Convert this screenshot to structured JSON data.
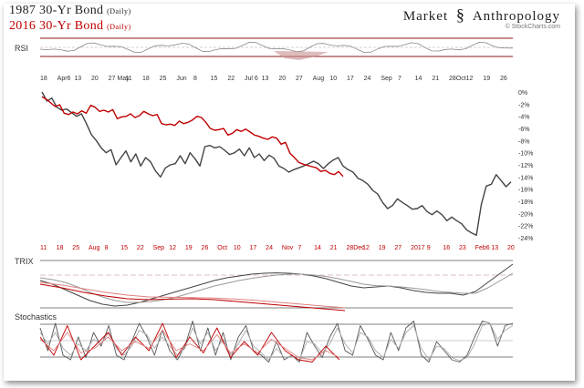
{
  "header": {
    "title_1987": "1987",
    "title_1987_name": "30-Yr Bond",
    "title_1987_period": "(Daily)",
    "title_2016": "2016",
    "title_2016_name": "30-Yr Bond",
    "title_2016_period": "(Daily)",
    "brand_left": "Market",
    "brand_right": "Anthropology",
    "copyright": "© StockCharts.com"
  },
  "colors": {
    "series_1987": "#444444",
    "series_2016": "#c00000",
    "accent": "#8b1a1a"
  },
  "chart_data": [
    {
      "type": "line",
      "panel": "RSI",
      "title": "RSI",
      "top_axis_labels": [
        "18",
        "Apr6",
        "13",
        "20",
        "27 May",
        "11",
        "18",
        "25",
        "Jun",
        "8",
        "15",
        "22",
        "Jul 6",
        "13",
        "20",
        "27",
        "Aug",
        "10",
        "17",
        "24",
        "Sep",
        "7",
        "14",
        "21",
        "28Oct",
        "12",
        "19",
        "26"
      ]
    },
    {
      "type": "line",
      "panel": "price",
      "y_tick_labels": [
        "0%",
        "-2%",
        "-4%",
        "-6%",
        "-8%",
        "-10%",
        "-12%",
        "-14%",
        "-16%",
        "-18%",
        "-20%",
        "-22%",
        "-24%"
      ],
      "ylim": [
        -24,
        0
      ],
      "bottom_axis_labels": [
        "11",
        "18",
        "25",
        "Aug",
        "8",
        "15",
        "22",
        "Sep",
        "12",
        "19",
        "26",
        "Oct",
        "10",
        "17",
        "24",
        "Nov",
        "7",
        "14",
        "21",
        "28Dec",
        "12",
        "19",
        "27",
        "2017",
        "9",
        "16",
        "23",
        "Feb6",
        "13",
        "20"
      ],
      "series": [
        {
          "name": "1987 30-Yr Bond",
          "color": "#444444",
          "values": [
            0,
            -1.5,
            -1,
            -2.5,
            -3,
            -2.8,
            -3.4,
            -4,
            -3.6,
            -5.2,
            -7,
            -8,
            -9.2,
            -10,
            -9.5,
            -12,
            -10.8,
            -9.7,
            -11.5,
            -10.2,
            -12.2,
            -10.8,
            -11.5,
            -13,
            -14,
            -12.5,
            -12,
            -11.8,
            -10.5,
            -11.8,
            -10,
            -11,
            -12.2,
            -9,
            -8.8,
            -9.2,
            -9,
            -9.6,
            -10.3,
            -10,
            -9.4,
            -10.5,
            -9.2,
            -10.8,
            -10.2,
            -11.3,
            -10.4,
            -10.9,
            -12.2,
            -12.6,
            -13.2,
            -12.8,
            -12.5,
            -12.2,
            -11.8,
            -11.4,
            -11.8,
            -12.6,
            -11.8,
            -11.2,
            -10.8,
            -12.2,
            -12.8,
            -13.2,
            -14.2,
            -14.6,
            -15.2,
            -16.2,
            -16.8,
            -18.2,
            -19.2,
            -18.7,
            -17.6,
            -18.2,
            -18.7,
            -19.3,
            -19.2,
            -18.7,
            -19.7,
            -20.2,
            -19.6,
            -20.2,
            -21.2,
            -20.6,
            -21.2,
            -21.7,
            -22.7,
            -23.2,
            -23.6,
            -18.5,
            -15.5,
            -15.2,
            -13.6,
            -14.6,
            -15.6,
            -14.8
          ]
        },
        {
          "name": "2016 30-Yr Bond",
          "color": "#c00000",
          "values": [
            -0.8,
            -1.2,
            -1.8,
            -2.4,
            -2.1,
            -3.5,
            -3.7,
            -3.3,
            -3.6,
            -3.1,
            -3.5,
            -2.2,
            -2.5,
            -3.2,
            -3,
            -3.3,
            -2.9,
            -4.4,
            -4.1,
            -4,
            -3.6,
            -4.2,
            -3.9,
            -3.2,
            -3.6,
            -3.9,
            -3.7,
            -5.2,
            -5.4,
            -5.3,
            -5.5,
            -4.8,
            -5.2,
            -5,
            -4.6,
            -4,
            -4.2,
            -5,
            -6,
            -6.3,
            -6.2,
            -6,
            -7.1,
            -6.8,
            -6.2,
            -6.5,
            -6.1,
            -6.6,
            -7.1,
            -7.3,
            -7.6,
            -7.8,
            -7.4,
            -7.6,
            -8.6,
            -8.3,
            -10.1,
            -10.8,
            -11.6,
            -11.9,
            -12.1,
            -12.3,
            -12.5,
            -13.1,
            -12.9,
            -13.4,
            -13.6,
            -13.1,
            -13.9
          ]
        }
      ]
    },
    {
      "type": "line",
      "panel": "TRIX",
      "title": "TRIX",
      "series": [
        {
          "name": "",
          "color": "#444444",
          "values": [
            0.2,
            0.0,
            -0.3,
            -0.6,
            -0.9,
            -1.1,
            -1.2,
            -1.15,
            -1.0,
            -0.8,
            -0.6,
            -0.4,
            -0.2,
            0.0,
            0.2,
            0.35,
            0.45,
            0.55,
            0.6,
            0.62,
            0.6,
            0.55,
            0.45,
            0.3,
            0.1,
            -0.1,
            -0.2,
            -0.15,
            -0.1,
            -0.2,
            -0.35,
            -0.45,
            -0.5,
            -0.5,
            -0.6,
            -0.4,
            0.1,
            0.6,
            1.1
          ]
        },
        {
          "name": "",
          "color": "#999999",
          "values": [
            0.35,
            0.25,
            0.1,
            -0.15,
            -0.45,
            -0.7,
            -0.9,
            -1.0,
            -1.0,
            -0.95,
            -0.85,
            -0.7,
            -0.5,
            -0.3,
            -0.1,
            0.05,
            0.2,
            0.32,
            0.42,
            0.5,
            0.55,
            0.55,
            0.5,
            0.42,
            0.3,
            0.15,
            0.0,
            -0.08,
            -0.1,
            -0.15,
            -0.22,
            -0.3,
            -0.4,
            -0.45,
            -0.5,
            -0.5,
            -0.2,
            0.2,
            0.6
          ]
        },
        {
          "name": "",
          "color": "#c00000",
          "values": [
            0.0,
            -0.2,
            -0.45,
            -0.65,
            -0.8,
            -0.85,
            -0.82,
            -0.8,
            -0.85,
            -0.95,
            -1.05,
            -1.15,
            -1.25,
            -1.35,
            -1.45
          ]
        },
        {
          "name": "",
          "color": "#e08080",
          "values": [
            0.1,
            -0.05,
            -0.25,
            -0.45,
            -0.6,
            -0.7,
            -0.72,
            -0.74,
            -0.76,
            -0.82,
            -0.9,
            -1.0,
            -1.1,
            -1.2,
            -1.3
          ]
        }
      ]
    },
    {
      "type": "line",
      "panel": "Stochastics",
      "title": "Stochastics",
      "ylim": [
        0,
        100
      ],
      "series": [
        {
          "name": "",
          "color": "#555555",
          "values": [
            80,
            30,
            90,
            20,
            10,
            60,
            15,
            70,
            40,
            85,
            20,
            10,
            50,
            90,
            60,
            20,
            75,
            30,
            10,
            40,
            95,
            30,
            80,
            20,
            70,
            10,
            60,
            85,
            30,
            20,
            5,
            50,
            10,
            20,
            5,
            70,
            40,
            15,
            60,
            90,
            30,
            20,
            85,
            55,
            20,
            10,
            70,
            30,
            80,
            95,
            20,
            5,
            50,
            30,
            10,
            5,
            20,
            60,
            95,
            90,
            40,
            85,
            90
          ]
        },
        {
          "name": "",
          "color": "#aaaaaa",
          "values": [
            70,
            45,
            70,
            35,
            20,
            45,
            30,
            55,
            45,
            70,
            35,
            20,
            40,
            75,
            65,
            35,
            60,
            40,
            20,
            35,
            80,
            45,
            70,
            30,
            55,
            20,
            45,
            75,
            40,
            25,
            10,
            35,
            15,
            18,
            10,
            50,
            45,
            25,
            45,
            80,
            45,
            25,
            70,
            60,
            30,
            15,
            55,
            35,
            70,
            85,
            35,
            10,
            40,
            35,
            15,
            8,
            15,
            45,
            85,
            90,
            55,
            75,
            85
          ]
        },
        {
          "name": "",
          "color": "#c00000",
          "values": [
            60,
            20,
            85,
            10,
            40,
            70,
            20,
            60,
            30,
            90,
            15,
            60,
            25,
            80,
            15,
            50,
            20,
            70,
            30,
            10,
            5,
            40,
            10
          ]
        },
        {
          "name": "",
          "color": "#e08080",
          "values": [
            55,
            30,
            70,
            25,
            35,
            60,
            30,
            50,
            35,
            75,
            30,
            45,
            30,
            65,
            25,
            45,
            25,
            55,
            35,
            15,
            10,
            30,
            15
          ]
        }
      ]
    }
  ]
}
